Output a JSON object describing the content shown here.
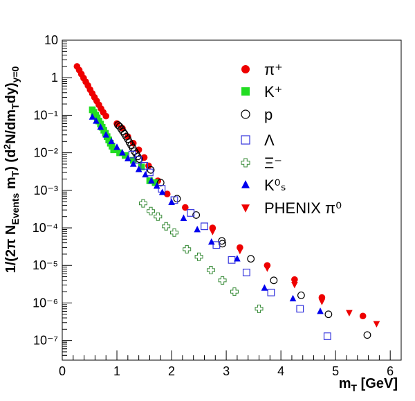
{
  "chart_data": {
    "type": "scatter",
    "title": "",
    "xlabel": "m_T [GeV]",
    "ylabel": "1/(2π N_Events m_T) (d²N/dm_T dy)_y=0",
    "xlim": [
      0,
      6.2
    ],
    "ylim": [
      3e-08,
      10
    ],
    "yscale": "log",
    "x_ticks": [
      0,
      1,
      2,
      3,
      4,
      5,
      6
    ],
    "y_ticks": [
      {
        "value": 10,
        "label": "10"
      },
      {
        "value": 1,
        "label": "1"
      },
      {
        "value": 0.1,
        "label": "10⁻¹"
      },
      {
        "value": 0.01,
        "label": "10⁻²"
      },
      {
        "value": 0.001,
        "label": "10⁻³"
      },
      {
        "value": 0.0001,
        "label": "10⁻⁴"
      },
      {
        "value": 1e-05,
        "label": "10⁻⁵"
      },
      {
        "value": 1e-06,
        "label": "10⁻⁶"
      },
      {
        "value": 1e-07,
        "label": "10⁻⁷"
      }
    ],
    "grid": false,
    "legend_position": "top-right",
    "series": [
      {
        "name": "π⁺",
        "marker": "circle-filled",
        "color": "#ee0000",
        "points": [
          [
            0.27,
            2.0
          ],
          [
            0.31,
            1.6
          ],
          [
            0.35,
            1.25
          ],
          [
            0.39,
            0.98
          ],
          [
            0.43,
            0.78
          ],
          [
            0.47,
            0.62
          ],
          [
            0.51,
            0.48
          ],
          [
            0.55,
            0.38
          ],
          [
            0.59,
            0.3
          ],
          [
            0.63,
            0.24
          ],
          [
            0.67,
            0.19
          ],
          [
            0.71,
            0.15
          ],
          [
            0.75,
            0.12
          ],
          [
            0.8,
            0.095
          ],
          [
            1.0,
            0.06
          ],
          [
            1.1,
            0.045
          ],
          [
            1.2,
            0.027
          ],
          [
            1.3,
            0.018
          ],
          [
            1.4,
            0.012
          ],
          [
            1.5,
            0.0075
          ],
          [
            1.58,
            0.0045
          ],
          [
            1.75,
            0.0018
          ],
          [
            1.92,
            0.0008
          ],
          [
            2.25,
            0.00035
          ],
          [
            2.75,
            0.0001
          ],
          [
            3.25,
            3e-05
          ],
          [
            3.75,
            1e-05
          ],
          [
            4.25,
            4.2e-06
          ],
          [
            4.75,
            1.4e-06
          ],
          [
            5.5,
            4.5e-07
          ]
        ]
      },
      {
        "name": "K⁺",
        "marker": "square-filled",
        "color": "#22dd22",
        "points": [
          [
            0.55,
            0.14
          ],
          [
            0.58,
            0.12
          ],
          [
            0.61,
            0.1
          ],
          [
            0.64,
            0.085
          ],
          [
            0.67,
            0.07
          ],
          [
            0.7,
            0.058
          ],
          [
            0.73,
            0.048
          ],
          [
            0.76,
            0.04
          ],
          [
            0.79,
            0.033
          ],
          [
            0.82,
            0.027
          ],
          [
            0.85,
            0.022
          ],
          [
            0.88,
            0.018
          ],
          [
            0.91,
            0.015
          ],
          [
            0.94,
            0.012
          ],
          [
            1.05,
            0.01
          ],
          [
            1.15,
            0.0085
          ],
          [
            1.3,
            0.0063
          ],
          [
            1.45,
            0.0042
          ],
          [
            1.6,
            0.0018
          ],
          [
            1.7,
            0.0016
          ]
        ]
      },
      {
        "name": "p",
        "marker": "circle-open",
        "color": "#000000",
        "points": [
          [
            1.02,
            0.055
          ],
          [
            1.05,
            0.05
          ],
          [
            1.08,
            0.043
          ],
          [
            1.11,
            0.037
          ],
          [
            1.14,
            0.032
          ],
          [
            1.17,
            0.027
          ],
          [
            1.2,
            0.023
          ],
          [
            1.23,
            0.019
          ],
          [
            1.26,
            0.016
          ],
          [
            1.29,
            0.0135
          ],
          [
            1.32,
            0.011
          ],
          [
            1.35,
            0.0095
          ],
          [
            1.38,
            0.008
          ],
          [
            1.41,
            0.0068
          ],
          [
            1.62,
            0.0035
          ],
          [
            1.8,
            0.0016
          ],
          [
            2.1,
            0.0006
          ],
          [
            2.45,
            0.00022
          ],
          [
            2.92,
            4.5e-05
          ],
          [
            2.93,
            3.8e-05
          ],
          [
            3.45,
            1.5e-05
          ],
          [
            3.87,
            4e-06
          ],
          [
            4.37,
            1.6e-06
          ],
          [
            4.87,
            5e-07
          ],
          [
            5.58,
            1.4e-07
          ]
        ]
      },
      {
        "name": "Λ",
        "marker": "square-open",
        "color": "#3333dd",
        "points": [
          [
            1.28,
            0.009
          ],
          [
            1.39,
            0.0065
          ],
          [
            1.5,
            0.0045
          ],
          [
            1.6,
            0.003
          ],
          [
            1.82,
            0.0011
          ],
          [
            2.05,
            0.00055
          ],
          [
            2.35,
            0.00025
          ],
          [
            2.6,
            0.00011
          ],
          [
            2.82,
            3.5e-05
          ],
          [
            3.1,
            1.4e-05
          ],
          [
            3.37,
            6.5e-06
          ],
          [
            3.82,
            1.9e-06
          ],
          [
            4.35,
            7e-07
          ],
          [
            4.85,
            1.3e-07
          ]
        ]
      },
      {
        "name": "Ξ⁻",
        "marker": "cross-open",
        "color": "#338833",
        "points": [
          [
            1.48,
            0.00045
          ],
          [
            1.62,
            0.00028
          ],
          [
            1.75,
            0.0002
          ],
          [
            1.9,
            0.00011
          ],
          [
            2.05,
            7.5e-05
          ],
          [
            2.28,
            2.7e-05
          ],
          [
            2.5,
            1.7e-05
          ],
          [
            2.72,
            7.5e-06
          ],
          [
            2.93,
            4e-06
          ],
          [
            3.15,
            2e-06
          ],
          [
            3.6,
            7e-07
          ]
        ]
      },
      {
        "name": "K⁰ₛ",
        "marker": "triangle-up",
        "color": "#0000ee",
        "points": [
          [
            0.55,
            0.09
          ],
          [
            0.62,
            0.07
          ],
          [
            0.7,
            0.048
          ],
          [
            0.8,
            0.03
          ],
          [
            0.9,
            0.02
          ],
          [
            1.0,
            0.014
          ],
          [
            1.1,
            0.01
          ],
          [
            1.2,
            0.007
          ],
          [
            1.3,
            0.005
          ],
          [
            1.4,
            0.0036
          ],
          [
            1.52,
            0.0026
          ],
          [
            1.63,
            0.0018
          ],
          [
            1.73,
            0.0013
          ],
          [
            1.83,
            0.00088
          ],
          [
            2.0,
            0.00048
          ],
          [
            2.22,
            0.00018
          ],
          [
            2.47,
            9e-05
          ],
          [
            2.73,
            4.2e-05
          ],
          [
            3.2,
            1.5e-05
          ],
          [
            3.7,
            2.5e-06
          ],
          [
            4.22,
            1.3e-06
          ],
          [
            4.72,
            6e-07
          ]
        ]
      },
      {
        "name": "PHENIX π⁰",
        "marker": "triangle-down",
        "color": "#ee0000",
        "points": [
          [
            2.75,
            8e-05
          ],
          [
            3.25,
            2.5e-05
          ],
          [
            3.75,
            8.5e-06
          ],
          [
            4.25,
            3.1e-06
          ],
          [
            4.75,
            1.1e-06
          ],
          [
            5.25,
            5.5e-07
          ],
          [
            5.75,
            2.8e-07
          ]
        ]
      }
    ]
  }
}
